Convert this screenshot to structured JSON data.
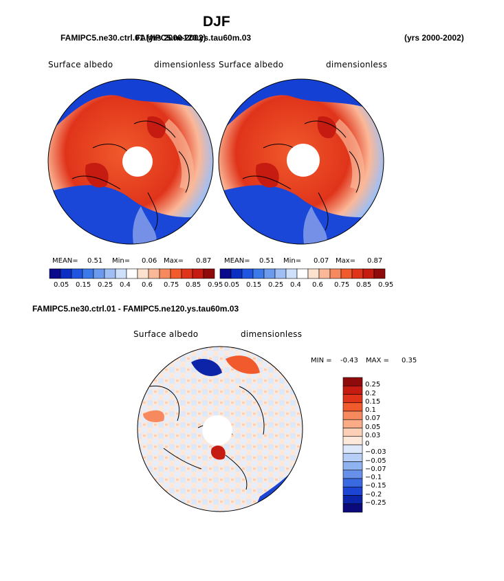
{
  "page": {
    "season": "DJF",
    "case_left": "FAMIPC5.ne30.ctrl.01 (yrs 2000-2002)",
    "case_right": "FAMIPC5.ne120.ys.tau60m.03",
    "years_right": "(yrs 2000-2002)",
    "diff_title": "FAMIPC5.ne30.ctrl.01 - FAMIPC5.ne120.ys.tau60m.03"
  },
  "panels": [
    {
      "variable": "Surface albedo",
      "units": "dimensionless",
      "mean_label": "MEAN=",
      "mean": "0.51",
      "min_label": "Min=",
      "min": "0.06",
      "max_label": "Max=",
      "max": "0.87"
    },
    {
      "variable": "Surface albedo",
      "units": "dimensionless",
      "mean_label": "MEAN=",
      "mean": "0.51",
      "min_label": "Min=",
      "min": "0.07",
      "max_label": "Max=",
      "max": "0.87"
    }
  ],
  "diff_panel": {
    "variable": "Surface albedo",
    "units": "dimensionless",
    "min_label": "MIN =",
    "min": "-0.43",
    "max_label": "MAX =",
    "max": "0.35"
  },
  "colorbar_main": {
    "labels": [
      "0.05",
      "0.15",
      "0.25",
      "0.4",
      "0.6",
      "0.75",
      "0.85",
      "0.95"
    ],
    "colors": [
      "#0a0a8c",
      "#0b2fc4",
      "#1f55e0",
      "#3b7ae8",
      "#6c9bee",
      "#9fbff4",
      "#cfe0fb",
      "#ffffff",
      "#fde1cf",
      "#fbb898",
      "#f7895f",
      "#f05a2c",
      "#e0341a",
      "#c51b10",
      "#8f0b0b"
    ]
  },
  "colorbar_diff": {
    "labels": [
      "0.25",
      "0.2",
      "0.15",
      "0.1",
      "0.07",
      "0.05",
      "0.03",
      "0",
      "−0.03",
      "−0.05",
      "−0.07",
      "−0.1",
      "−0.15",
      "−0.2",
      "−0.25"
    ],
    "colors": [
      "#8f0b0b",
      "#c51b10",
      "#e0341a",
      "#f05a2c",
      "#f7895f",
      "#fbab85",
      "#fcd0b6",
      "#fde8dc",
      "#dde9fa",
      "#b7cff6",
      "#8fb2f1",
      "#6690ea",
      "#3a6ae2",
      "#1b45d2",
      "#0b24a8",
      "#0a0a7a"
    ]
  }
}
